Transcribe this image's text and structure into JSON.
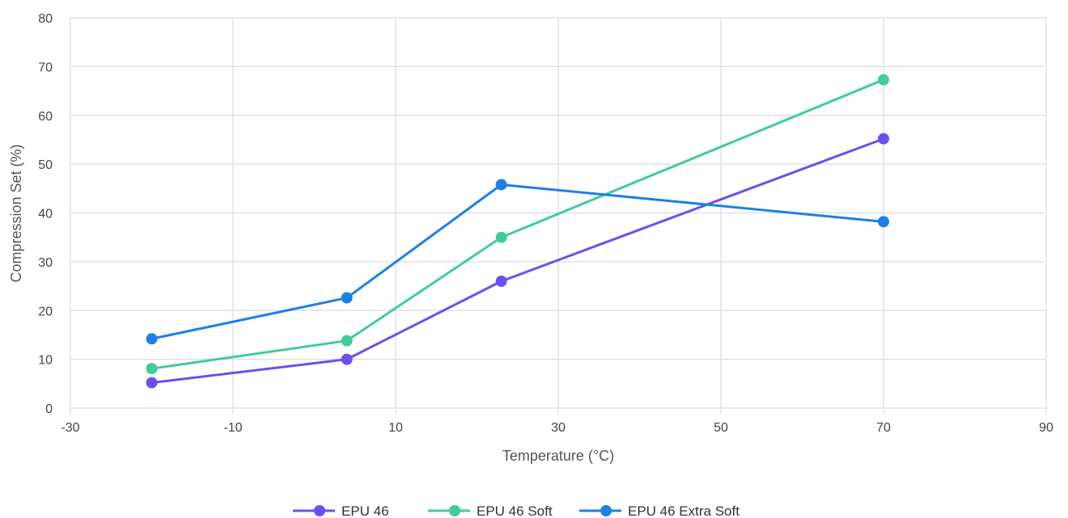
{
  "chart_data": {
    "type": "line",
    "title": "",
    "xlabel": "Temperature (°C)",
    "ylabel": "Compression Set (%)",
    "xlim": [
      -30,
      90
    ],
    "ylim": [
      0,
      80
    ],
    "xticks": [
      -30,
      -10,
      10,
      30,
      50,
      70,
      90
    ],
    "yticks": [
      0,
      10,
      20,
      30,
      40,
      50,
      60,
      70,
      80
    ],
    "xtick_labels": [
      "-30",
      "-10",
      "10",
      "30",
      "50",
      "70",
      "90"
    ],
    "ytick_labels": [
      "0",
      "10",
      "20",
      "30",
      "40",
      "50",
      "60",
      "70",
      "80"
    ],
    "grid": true,
    "legend_position": "bottom-center",
    "series": [
      {
        "name": "EPU 46",
        "color": "#6c4ff0",
        "x": [
          -20,
          4,
          23,
          70
        ],
        "y": [
          5.2,
          10,
          26,
          55.2
        ]
      },
      {
        "name": "EPU 46 Soft",
        "color": "#3fcc9f",
        "x": [
          -20,
          4,
          23,
          70
        ],
        "y": [
          8.1,
          13.8,
          35,
          67.3
        ]
      },
      {
        "name": "EPU 46 Extra Soft",
        "color": "#1e7fe5",
        "x": [
          -20,
          4,
          23,
          70
        ],
        "y": [
          14.2,
          22.6,
          45.8,
          38.2
        ]
      }
    ]
  }
}
